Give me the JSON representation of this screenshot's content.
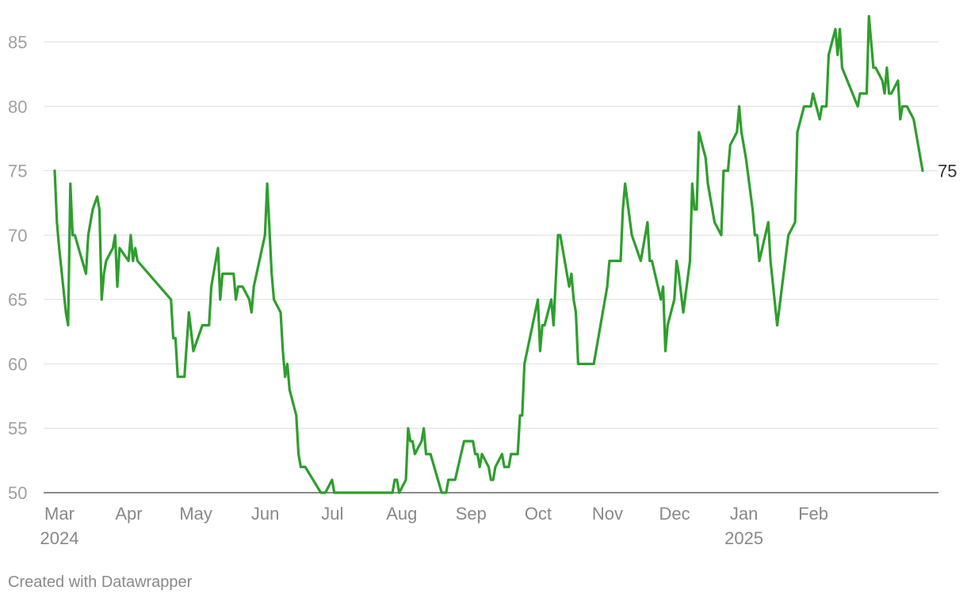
{
  "footer": "Created with Datawrapper",
  "colors": {
    "line": "#2e9e2e",
    "grid": "#e2e2e2",
    "axis_text": "#a0a0a0"
  },
  "chart_data": {
    "type": "line",
    "title": "",
    "xlabel": "",
    "ylabel": "",
    "ylim": [
      50,
      87
    ],
    "y_ticks": [
      50,
      55,
      60,
      65,
      70,
      75,
      80,
      85
    ],
    "x_ticks": [
      {
        "date": "2024-03-01",
        "label": "Mar",
        "sublabel": "2024"
      },
      {
        "date": "2024-04-01",
        "label": "Apr",
        "sublabel": ""
      },
      {
        "date": "2024-05-01",
        "label": "May",
        "sublabel": ""
      },
      {
        "date": "2024-06-01",
        "label": "Jun",
        "sublabel": ""
      },
      {
        "date": "2024-07-01",
        "label": "Jul",
        "sublabel": ""
      },
      {
        "date": "2024-08-01",
        "label": "Aug",
        "sublabel": ""
      },
      {
        "date": "2024-09-01",
        "label": "Sep",
        "sublabel": ""
      },
      {
        "date": "2024-10-01",
        "label": "Oct",
        "sublabel": ""
      },
      {
        "date": "2024-11-01",
        "label": "Nov",
        "sublabel": ""
      },
      {
        "date": "2024-12-01",
        "label": "Dec",
        "sublabel": ""
      },
      {
        "date": "2025-01-01",
        "label": "Jan",
        "sublabel": "2025"
      },
      {
        "date": "2025-02-01",
        "label": "Feb",
        "sublabel": ""
      }
    ],
    "grid": true,
    "end_label": "75",
    "series": [
      {
        "color": "#2e9e2e",
        "points": [
          [
            "2024-03-01",
            75
          ],
          [
            "2024-03-02",
            71
          ],
          [
            "2024-03-03",
            69
          ],
          [
            "2024-03-06",
            64
          ],
          [
            "2024-03-07",
            63
          ],
          [
            "2024-03-08",
            74
          ],
          [
            "2024-03-09",
            70
          ],
          [
            "2024-03-10",
            70
          ],
          [
            "2024-03-15",
            67
          ],
          [
            "2024-03-16",
            70
          ],
          [
            "2024-03-18",
            72
          ],
          [
            "2024-03-20",
            73
          ],
          [
            "2024-03-21",
            72
          ],
          [
            "2024-03-22",
            65
          ],
          [
            "2024-03-23",
            67
          ],
          [
            "2024-03-24",
            68
          ],
          [
            "2024-03-27",
            69
          ],
          [
            "2024-03-28",
            70
          ],
          [
            "2024-03-29",
            66
          ],
          [
            "2024-03-30",
            69
          ],
          [
            "2024-04-03",
            68
          ],
          [
            "2024-04-04",
            70
          ],
          [
            "2024-04-05",
            68
          ],
          [
            "2024-04-06",
            69
          ],
          [
            "2024-04-07",
            68
          ],
          [
            "2024-04-22",
            65
          ],
          [
            "2024-04-23",
            62
          ],
          [
            "2024-04-24",
            62
          ],
          [
            "2024-04-25",
            59
          ],
          [
            "2024-04-28",
            59
          ],
          [
            "2024-04-30",
            64
          ],
          [
            "2024-05-02",
            61
          ],
          [
            "2024-05-06",
            63
          ],
          [
            "2024-05-09",
            63
          ],
          [
            "2024-05-10",
            66
          ],
          [
            "2024-05-13",
            69
          ],
          [
            "2024-05-14",
            65
          ],
          [
            "2024-05-15",
            67
          ],
          [
            "2024-05-20",
            67
          ],
          [
            "2024-05-21",
            65
          ],
          [
            "2024-05-22",
            66
          ],
          [
            "2024-05-24",
            66
          ],
          [
            "2024-05-27",
            65
          ],
          [
            "2024-05-28",
            64
          ],
          [
            "2024-05-29",
            66
          ],
          [
            "2024-06-03",
            70
          ],
          [
            "2024-06-04",
            74
          ],
          [
            "2024-06-06",
            67
          ],
          [
            "2024-06-07",
            65
          ],
          [
            "2024-06-10",
            64
          ],
          [
            "2024-06-11",
            61
          ],
          [
            "2024-06-12",
            59
          ],
          [
            "2024-06-13",
            60
          ],
          [
            "2024-06-14",
            58
          ],
          [
            "2024-06-17",
            56
          ],
          [
            "2024-06-18",
            53
          ],
          [
            "2024-06-19",
            52
          ],
          [
            "2024-06-21",
            52
          ],
          [
            "2024-06-28",
            50
          ],
          [
            "2024-06-30",
            50
          ],
          [
            "2024-07-03",
            51
          ],
          [
            "2024-07-04",
            50
          ],
          [
            "2024-07-30",
            50
          ],
          [
            "2024-07-31",
            51
          ],
          [
            "2024-08-01",
            51
          ],
          [
            "2024-08-02",
            50
          ],
          [
            "2024-08-05",
            51
          ],
          [
            "2024-08-06",
            55
          ],
          [
            "2024-08-07",
            54
          ],
          [
            "2024-08-08",
            54
          ],
          [
            "2024-08-09",
            53
          ],
          [
            "2024-08-12",
            54
          ],
          [
            "2024-08-13",
            55
          ],
          [
            "2024-08-14",
            53
          ],
          [
            "2024-08-16",
            53
          ],
          [
            "2024-08-21",
            50
          ],
          [
            "2024-08-23",
            50
          ],
          [
            "2024-08-24",
            51
          ],
          [
            "2024-08-27",
            51
          ],
          [
            "2024-08-31",
            54
          ],
          [
            "2024-09-04",
            54
          ],
          [
            "2024-09-05",
            53
          ],
          [
            "2024-09-06",
            53
          ],
          [
            "2024-09-07",
            52
          ],
          [
            "2024-09-08",
            53
          ],
          [
            "2024-09-11",
            52
          ],
          [
            "2024-09-12",
            51
          ],
          [
            "2024-09-13",
            51
          ],
          [
            "2024-09-14",
            52
          ],
          [
            "2024-09-17",
            53
          ],
          [
            "2024-09-18",
            52
          ],
          [
            "2024-09-20",
            52
          ],
          [
            "2024-09-21",
            53
          ],
          [
            "2024-09-24",
            53
          ],
          [
            "2024-09-25",
            56
          ],
          [
            "2024-09-26",
            56
          ],
          [
            "2024-09-27",
            60
          ],
          [
            "2024-10-03",
            65
          ],
          [
            "2024-10-04",
            61
          ],
          [
            "2024-10-05",
            63
          ],
          [
            "2024-10-06",
            63
          ],
          [
            "2024-10-09",
            65
          ],
          [
            "2024-10-10",
            63
          ],
          [
            "2024-10-12",
            70
          ],
          [
            "2024-10-13",
            70
          ],
          [
            "2024-10-17",
            66
          ],
          [
            "2024-10-18",
            67
          ],
          [
            "2024-10-19",
            65
          ],
          [
            "2024-10-20",
            64
          ],
          [
            "2024-10-21",
            60
          ],
          [
            "2024-10-28",
            60
          ],
          [
            "2024-11-02",
            65
          ],
          [
            "2024-11-03",
            66
          ],
          [
            "2024-11-04",
            68
          ],
          [
            "2024-11-09",
            68
          ],
          [
            "2024-11-10",
            72
          ],
          [
            "2024-11-11",
            74
          ],
          [
            "2024-11-14",
            70
          ],
          [
            "2024-11-18",
            68
          ],
          [
            "2024-11-21",
            71
          ],
          [
            "2024-11-22",
            68
          ],
          [
            "2024-11-23",
            68
          ],
          [
            "2024-11-27",
            65
          ],
          [
            "2024-11-28",
            66
          ],
          [
            "2024-11-29",
            61
          ],
          [
            "2024-11-30",
            63
          ],
          [
            "2024-12-03",
            65
          ],
          [
            "2024-12-04",
            68
          ],
          [
            "2024-12-05",
            67
          ],
          [
            "2024-12-07",
            64
          ],
          [
            "2024-12-10",
            68
          ],
          [
            "2024-12-11",
            74
          ],
          [
            "2024-12-12",
            72
          ],
          [
            "2024-12-13",
            72
          ],
          [
            "2024-12-14",
            78
          ],
          [
            "2024-12-17",
            76
          ],
          [
            "2024-12-18",
            74
          ],
          [
            "2024-12-21",
            71
          ],
          [
            "2024-12-24",
            70
          ],
          [
            "2024-12-25",
            75
          ],
          [
            "2024-12-27",
            75
          ],
          [
            "2024-12-28",
            77
          ],
          [
            "2024-12-31",
            78
          ],
          [
            "2025-01-01",
            80
          ],
          [
            "2025-01-02",
            78
          ],
          [
            "2025-01-04",
            76
          ],
          [
            "2025-01-07",
            72
          ],
          [
            "2025-01-08",
            70
          ],
          [
            "2025-01-09",
            70
          ],
          [
            "2025-01-10",
            68
          ],
          [
            "2025-01-14",
            71
          ],
          [
            "2025-01-15",
            68
          ],
          [
            "2025-01-18",
            63
          ],
          [
            "2025-01-23",
            70
          ],
          [
            "2025-01-26",
            71
          ],
          [
            "2025-01-27",
            78
          ],
          [
            "2025-01-30",
            80
          ],
          [
            "2025-02-02",
            80
          ],
          [
            "2025-02-03",
            81
          ],
          [
            "2025-02-06",
            79
          ],
          [
            "2025-02-07",
            80
          ],
          [
            "2025-02-09",
            80
          ],
          [
            "2025-02-10",
            84
          ],
          [
            "2025-02-13",
            86
          ],
          [
            "2025-02-14",
            84
          ],
          [
            "2025-02-15",
            86
          ],
          [
            "2025-02-16",
            83
          ],
          [
            "2025-02-23",
            80
          ],
          [
            "2025-02-24",
            81
          ],
          [
            "2025-02-27",
            81
          ],
          [
            "2025-02-28",
            87
          ],
          [
            "2025-03-02",
            83
          ],
          [
            "2025-03-03",
            83
          ],
          [
            "2025-03-06",
            82
          ],
          [
            "2025-03-07",
            81
          ],
          [
            "2025-03-08",
            83
          ],
          [
            "2025-03-09",
            81
          ],
          [
            "2025-03-10",
            81
          ],
          [
            "2025-03-13",
            82
          ],
          [
            "2025-03-14",
            79
          ],
          [
            "2025-03-15",
            80
          ],
          [
            "2025-03-17",
            80
          ],
          [
            "2025-03-20",
            79
          ],
          [
            "2025-03-24",
            75
          ]
        ]
      }
    ]
  }
}
